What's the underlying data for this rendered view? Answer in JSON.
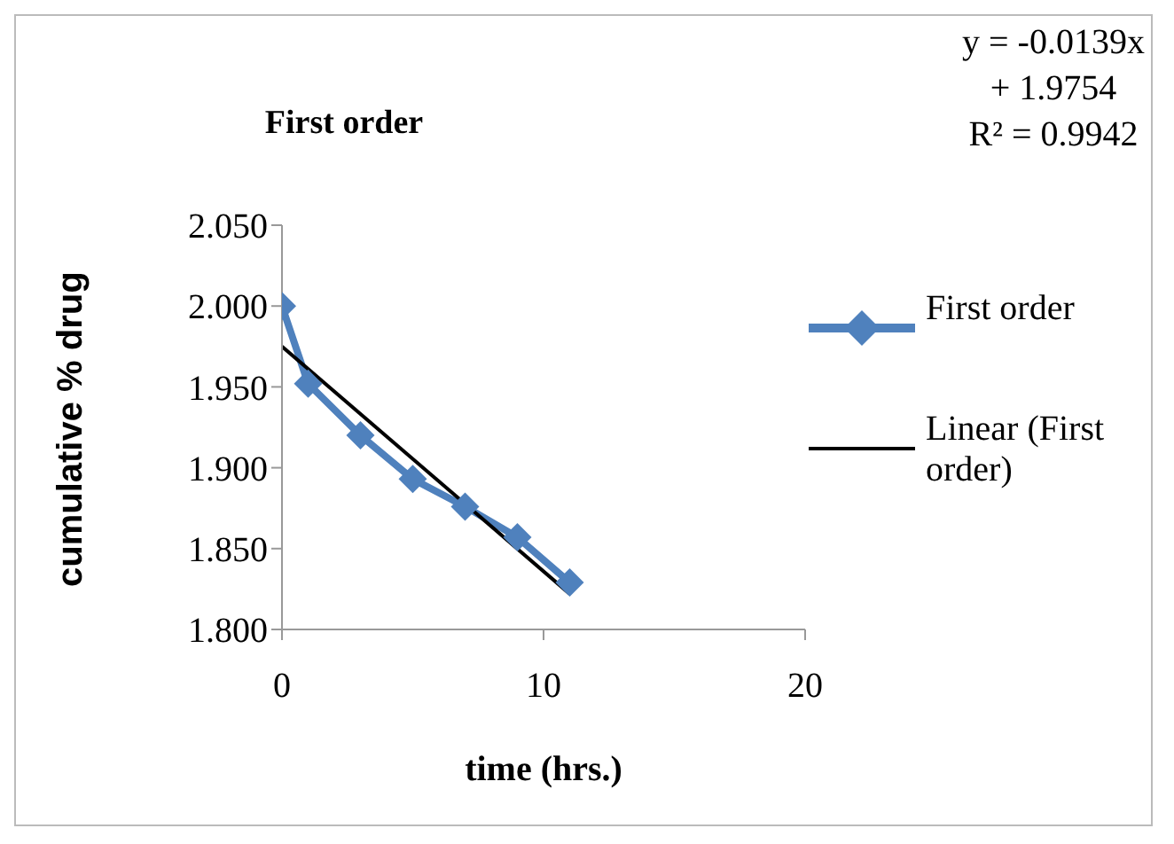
{
  "chart_data": {
    "type": "line",
    "title": "First order",
    "xlabel": "time (hrs.)",
    "ylabel": "cumulative % drug",
    "annotations": [
      "y = -0.0139x + 1.9754",
      "R² = 0.9942"
    ],
    "series": [
      {
        "name": "First order",
        "color": "#4f81bd",
        "x": [
          0,
          1,
          3,
          5,
          7,
          9,
          11
        ],
        "values": [
          2.0,
          1.952,
          1.92,
          1.893,
          1.876,
          1.857,
          1.829
        ],
        "marker": "diamond"
      },
      {
        "name": "Linear (First order)",
        "color": "#000000",
        "x": [
          0,
          11
        ],
        "values": [
          1.975,
          1.822
        ],
        "marker": "none"
      }
    ],
    "xlim": [
      0,
      20
    ],
    "xticks": [
      0,
      10,
      20
    ],
    "ylim": [
      1.8,
      2.05
    ],
    "yticks": [
      {
        "value": 1.8,
        "label": "1.800"
      },
      {
        "value": 1.85,
        "label": "1.850"
      },
      {
        "value": 1.9,
        "label": "1.900"
      },
      {
        "value": 1.95,
        "label": "1.950"
      },
      {
        "value": 2.0,
        "label": "2.000"
      },
      {
        "value": 2.05,
        "label": "2.050"
      }
    ],
    "grid": false,
    "legend": "right"
  }
}
